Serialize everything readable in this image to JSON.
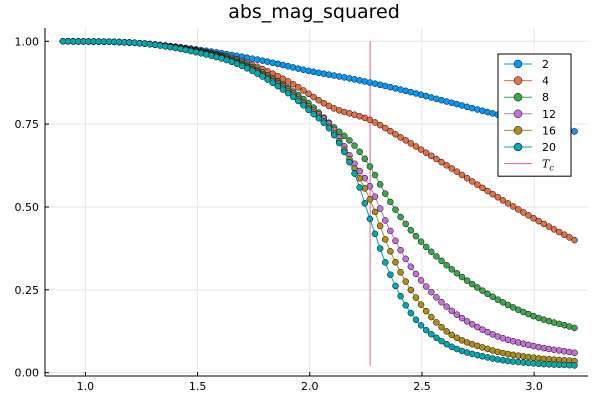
{
  "chart_data": {
    "type": "scatter",
    "title": "abs_mag_squared",
    "xlabel": "",
    "ylabel": "",
    "xlim": [
      0.82,
      3.24
    ],
    "ylim": [
      -0.01,
      1.04
    ],
    "x_ticks": [
      {
        "value": 1.0,
        "label": "1.0"
      },
      {
        "value": 1.5,
        "label": "1.5"
      },
      {
        "value": 2.0,
        "label": "2.0"
      },
      {
        "value": 2.5,
        "label": "2.5"
      },
      {
        "value": 3.0,
        "label": "3.0"
      }
    ],
    "y_ticks": [
      {
        "value": 0.0,
        "label": "0.00"
      },
      {
        "value": 0.25,
        "label": "0.25"
      },
      {
        "value": 0.5,
        "label": "0.50"
      },
      {
        "value": 0.75,
        "label": "0.75"
      },
      {
        "value": 1.0,
        "label": "1.00"
      }
    ],
    "grid": true,
    "legend_position": "top-right",
    "x_range": [
      0.9,
      3.18
    ],
    "num_points": 101,
    "series": [
      {
        "name": "2",
        "color": "#009AFA",
        "anchors": [
          [
            0.9,
            1.0
          ],
          [
            1.2,
            0.996
          ],
          [
            1.5,
            0.975
          ],
          [
            1.8,
            0.94
          ],
          [
            2.0,
            0.91
          ],
          [
            2.2,
            0.885
          ],
          [
            2.4,
            0.855
          ],
          [
            2.6,
            0.82
          ],
          [
            2.8,
            0.785
          ],
          [
            3.0,
            0.752
          ],
          [
            3.18,
            0.728
          ]
        ]
      },
      {
        "name": "4",
        "color": "#E36F47",
        "anchors": [
          [
            0.9,
            1.0
          ],
          [
            1.2,
            0.996
          ],
          [
            1.5,
            0.972
          ],
          [
            1.7,
            0.94
          ],
          [
            1.9,
            0.88
          ],
          [
            2.1,
            0.8
          ],
          [
            2.27,
            0.762
          ],
          [
            2.4,
            0.712
          ],
          [
            2.6,
            0.63
          ],
          [
            2.8,
            0.545
          ],
          [
            3.0,
            0.465
          ],
          [
            3.18,
            0.4
          ]
        ]
      },
      {
        "name": "8",
        "color": "#3EA44E",
        "anchors": [
          [
            0.9,
            1.0
          ],
          [
            1.2,
            0.996
          ],
          [
            1.5,
            0.97
          ],
          [
            1.7,
            0.935
          ],
          [
            1.9,
            0.86
          ],
          [
            2.0,
            0.81
          ],
          [
            2.1,
            0.745
          ],
          [
            2.2,
            0.685
          ],
          [
            2.27,
            0.62
          ],
          [
            2.35,
            0.525
          ],
          [
            2.45,
            0.43
          ],
          [
            2.6,
            0.33
          ],
          [
            2.8,
            0.235
          ],
          [
            3.0,
            0.17
          ],
          [
            3.18,
            0.135
          ]
        ]
      },
      {
        "name": "12",
        "color": "#C371D2",
        "anchors": [
          [
            0.9,
            1.0
          ],
          [
            1.2,
            0.996
          ],
          [
            1.5,
            0.97
          ],
          [
            1.7,
            0.93
          ],
          [
            1.9,
            0.855
          ],
          [
            2.0,
            0.8
          ],
          [
            2.1,
            0.74
          ],
          [
            2.2,
            0.63
          ],
          [
            2.27,
            0.56
          ],
          [
            2.35,
            0.44
          ],
          [
            2.45,
            0.32
          ],
          [
            2.6,
            0.205
          ],
          [
            2.8,
            0.12
          ],
          [
            3.0,
            0.08
          ],
          [
            3.18,
            0.06
          ]
        ]
      },
      {
        "name": "16",
        "color": "#AC8E18",
        "anchors": [
          [
            0.9,
            1.0
          ],
          [
            1.2,
            0.996
          ],
          [
            1.5,
            0.968
          ],
          [
            1.7,
            0.928
          ],
          [
            1.9,
            0.85
          ],
          [
            2.0,
            0.795
          ],
          [
            2.1,
            0.73
          ],
          [
            2.2,
            0.615
          ],
          [
            2.27,
            0.52
          ],
          [
            2.35,
            0.38
          ],
          [
            2.45,
            0.25
          ],
          [
            2.6,
            0.13
          ],
          [
            2.8,
            0.07
          ],
          [
            3.0,
            0.045
          ],
          [
            3.18,
            0.035
          ]
        ]
      },
      {
        "name": "20",
        "color": "#00A9AD",
        "anchors": [
          [
            0.9,
            1.0
          ],
          [
            1.2,
            0.996
          ],
          [
            1.5,
            0.966
          ],
          [
            1.7,
            0.925
          ],
          [
            1.9,
            0.845
          ],
          [
            2.0,
            0.79
          ],
          [
            2.1,
            0.725
          ],
          [
            2.2,
            0.6
          ],
          [
            2.27,
            0.46
          ],
          [
            2.35,
            0.31
          ],
          [
            2.45,
            0.18
          ],
          [
            2.6,
            0.09
          ],
          [
            2.8,
            0.045
          ],
          [
            3.0,
            0.028
          ],
          [
            3.18,
            0.022
          ]
        ]
      }
    ],
    "reference_line": {
      "name": "T_c",
      "label": "T",
      "subscript": "c",
      "x": 2.269,
      "y_from": 0.02,
      "y_to": 1.0,
      "color": "#ED5D92"
    }
  }
}
